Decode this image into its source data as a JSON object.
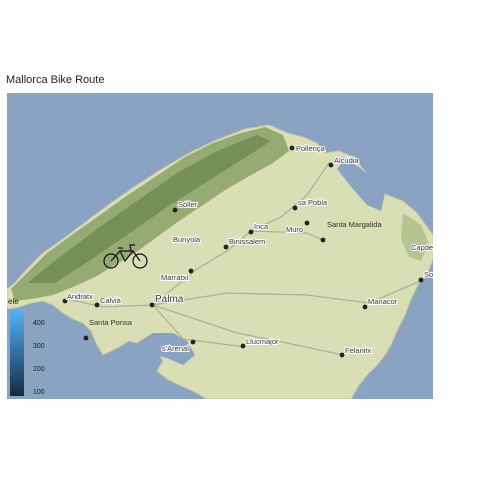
{
  "title": "Mallorca Bike Route",
  "labels": [
    {
      "text": "Pollença"
    },
    {
      "text": "Alcúdia"
    },
    {
      "text": "Sóller"
    },
    {
      "text": "sa Pobla"
    },
    {
      "text": "Inca"
    },
    {
      "text": "Muro"
    },
    {
      "text": "Santa Margalida"
    },
    {
      "text": "Bunyola"
    },
    {
      "text": "Binissalem"
    },
    {
      "text": "Capdepera"
    },
    {
      "text": "Son Servera"
    },
    {
      "text": "Marratxí"
    },
    {
      "text": "Andratx"
    },
    {
      "text": "Calvià"
    },
    {
      "text": "Palma"
    },
    {
      "text": "Manacor"
    },
    {
      "text": "Santa Ponsa"
    },
    {
      "text": "s'Arenal"
    },
    {
      "text": "Llucmajor"
    },
    {
      "text": "Felanitx"
    }
  ],
  "legend": {
    "title": "ele",
    "ticks": [
      "400",
      "300",
      "200",
      "100"
    ],
    "colors": {
      "low": "#132b43",
      "high": "#56b1f7"
    }
  },
  "colors": {
    "sea": "#8aa3c2",
    "land": "#d9deb4",
    "mountain": "#7f9a5f"
  },
  "route_icon": "bicycle-icon"
}
